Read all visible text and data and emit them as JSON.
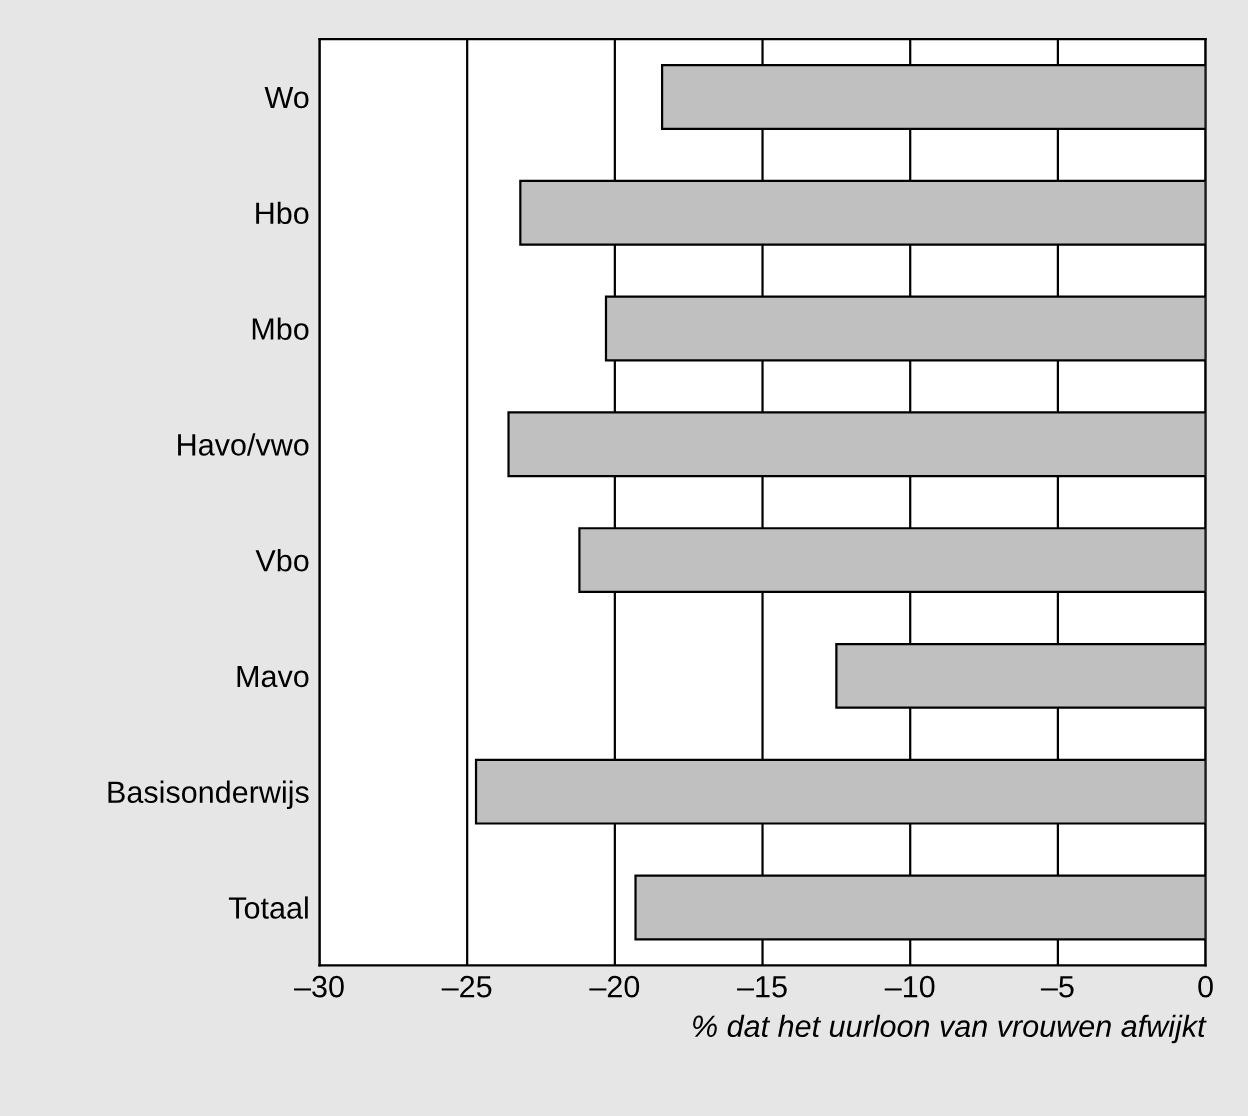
{
  "chart_data": {
    "type": "bar",
    "orientation": "horizontal",
    "categories": [
      "Wo",
      "Hbo",
      "Mbo",
      "Havo/vwo",
      "Vbo",
      "Mavo",
      "Basisonderwijs",
      "Totaal"
    ],
    "values": [
      -18.4,
      -23.2,
      -20.3,
      -23.6,
      -21.2,
      -12.5,
      -24.7,
      -19.3
    ],
    "color": "#c0c0c0",
    "xlim": [
      -30,
      0
    ],
    "xticks": [
      {
        "value": -30,
        "label": "–30"
      },
      {
        "value": -25,
        "label": "–25"
      },
      {
        "value": -20,
        "label": "–20"
      },
      {
        "value": -15,
        "label": "–15"
      },
      {
        "value": -10,
        "label": "–10"
      },
      {
        "value": -5,
        "label": "–5"
      },
      0
    ],
    "xlabel": "% dat het uurloon van vrouwen afwijkt",
    "grid": "x",
    "legend": false
  }
}
